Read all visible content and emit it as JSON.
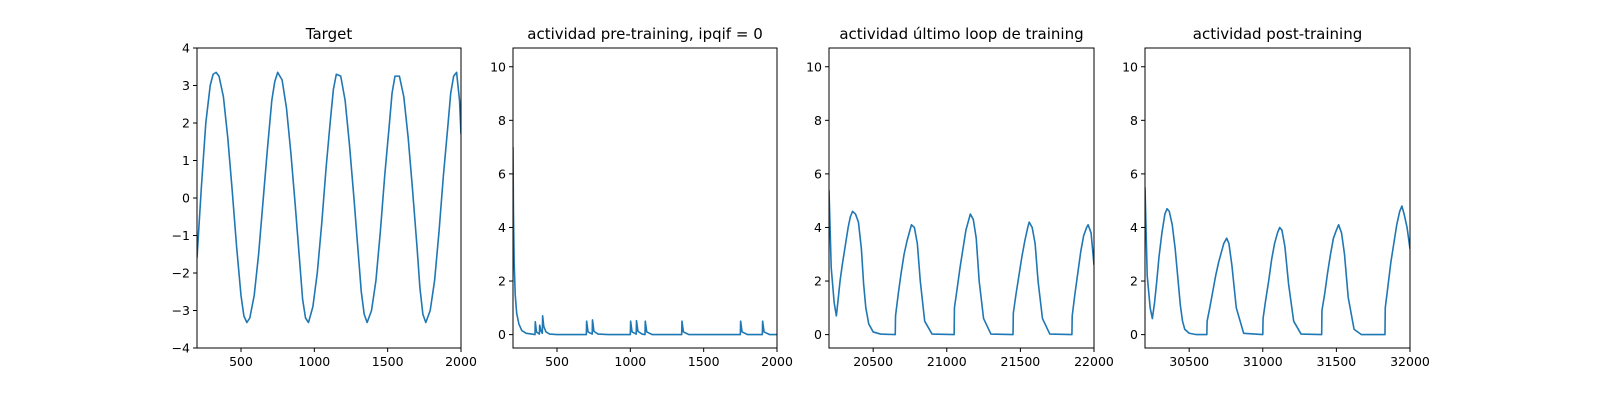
{
  "chart_data": [
    {
      "type": "line",
      "title": "Target",
      "xlim": [
        200,
        2000
      ],
      "ylim": [
        -4,
        4
      ],
      "xticks": [
        500,
        1000,
        1500,
        2000
      ],
      "yticks": [
        -4,
        -3,
        -2,
        -1,
        0,
        1,
        2,
        3,
        4
      ],
      "grid": false,
      "series": [
        {
          "color": "#1f77b4",
          "x": [
            200,
            230,
            260,
            290,
            310,
            330,
            350,
            380,
            410,
            440,
            470,
            500,
            520,
            540,
            560,
            590,
            620,
            650,
            680,
            710,
            730,
            750,
            780,
            810,
            840,
            870,
            900,
            920,
            940,
            960,
            990,
            1020,
            1050,
            1080,
            1110,
            1130,
            1150,
            1180,
            1210,
            1240,
            1270,
            1300,
            1320,
            1340,
            1360,
            1390,
            1420,
            1450,
            1480,
            1510,
            1530,
            1550,
            1580,
            1610,
            1640,
            1670,
            1700,
            1720,
            1740,
            1760,
            1790,
            1820,
            1850,
            1880,
            1910,
            1930,
            1950,
            1970,
            1990,
            2000
          ],
          "y": [
            -1.6,
            0.3,
            2.0,
            3.0,
            3.3,
            3.35,
            3.25,
            2.7,
            1.6,
            0.2,
            -1.3,
            -2.6,
            -3.15,
            -3.32,
            -3.2,
            -2.6,
            -1.5,
            -0.1,
            1.3,
            2.6,
            3.1,
            3.35,
            3.15,
            2.4,
            1.2,
            -0.2,
            -1.7,
            -2.7,
            -3.2,
            -3.32,
            -2.9,
            -2.0,
            -0.7,
            0.8,
            2.1,
            2.9,
            3.3,
            3.25,
            2.6,
            1.4,
            0.0,
            -1.5,
            -2.5,
            -3.1,
            -3.32,
            -3.0,
            -2.2,
            -0.9,
            0.6,
            1.9,
            2.8,
            3.25,
            3.25,
            2.7,
            1.6,
            0.2,
            -1.3,
            -2.4,
            -3.1,
            -3.32,
            -3.0,
            -2.2,
            -0.9,
            0.6,
            1.9,
            2.8,
            3.25,
            3.35,
            2.6,
            1.7
          ]
        }
      ]
    },
    {
      "type": "line",
      "title": "actividad pre-training, ipqif = 0",
      "xlim": [
        200,
        2000
      ],
      "ylim": [
        -0.5,
        10.7
      ],
      "xticks": [
        500,
        1000,
        1500,
        2000
      ],
      "yticks": [
        0,
        2,
        4,
        6,
        8,
        10
      ],
      "grid": false,
      "series": [
        {
          "color": "#1f77b4",
          "x": [
            200,
            203,
            208,
            215,
            225,
            240,
            260,
            290,
            330,
            350,
            352,
            360,
            380,
            382,
            390,
            400,
            402,
            410,
            425,
            450,
            500,
            600,
            700,
            702,
            712,
            740,
            742,
            752,
            780,
            850,
            1000,
            1002,
            1012,
            1040,
            1042,
            1052,
            1080,
            1100,
            1102,
            1112,
            1150,
            1250,
            1350,
            1352,
            1362,
            1400,
            1500,
            1750,
            1752,
            1762,
            1800,
            1900,
            1902,
            1912,
            1950,
            2000
          ],
          "y": [
            7.0,
            4.6,
            2.7,
            1.5,
            0.8,
            0.4,
            0.15,
            0.05,
            0.02,
            0.0,
            0.48,
            0.1,
            0.02,
            0.35,
            0.15,
            0.05,
            0.7,
            0.3,
            0.1,
            0.02,
            0.0,
            0.0,
            0.0,
            0.5,
            0.1,
            0.02,
            0.55,
            0.12,
            0.02,
            0.0,
            0.0,
            0.5,
            0.1,
            0.02,
            0.52,
            0.12,
            0.02,
            0.0,
            0.5,
            0.1,
            0.0,
            0.0,
            0.0,
            0.5,
            0.1,
            0.0,
            0.0,
            0.0,
            0.5,
            0.1,
            0.0,
            0.0,
            0.5,
            0.1,
            0.0,
            0.0
          ]
        }
      ]
    },
    {
      "type": "line",
      "title": "actividad último loop de training",
      "xlim": [
        20200,
        22000
      ],
      "ylim": [
        -0.5,
        10.7
      ],
      "xticks": [
        20500,
        21000,
        21500,
        22000
      ],
      "yticks": [
        0,
        2,
        4,
        6,
        8,
        10
      ],
      "grid": false,
      "series": [
        {
          "color": "#1f77b4",
          "x": [
            20200,
            20215,
            20235,
            20250,
            20260,
            20275,
            20290,
            20310,
            20330,
            20345,
            20360,
            20380,
            20400,
            20420,
            20435,
            20450,
            20470,
            20500,
            20550,
            20650,
            20652,
            20670,
            20690,
            20710,
            20730,
            20750,
            20760,
            20780,
            20800,
            20820,
            20850,
            20900,
            21050,
            21052,
            21070,
            21090,
            21110,
            21130,
            21150,
            21160,
            21180,
            21200,
            21220,
            21250,
            21300,
            21450,
            21452,
            21470,
            21490,
            21510,
            21530,
            21550,
            21560,
            21580,
            21600,
            21620,
            21650,
            21700,
            21850,
            21852,
            21870,
            21890,
            21910,
            21930,
            21950,
            21960,
            21980,
            22000
          ],
          "y": [
            5.4,
            2.5,
            1.2,
            0.7,
            1.2,
            2.0,
            2.6,
            3.3,
            4.0,
            4.4,
            4.6,
            4.5,
            4.2,
            3.2,
            1.9,
            1.0,
            0.4,
            0.1,
            0.02,
            0.0,
            0.7,
            1.5,
            2.3,
            3.0,
            3.5,
            3.9,
            4.1,
            4.0,
            3.4,
            2.0,
            0.5,
            0.02,
            0.0,
            1.0,
            1.7,
            2.5,
            3.2,
            3.9,
            4.3,
            4.5,
            4.3,
            3.6,
            2.0,
            0.6,
            0.02,
            0.0,
            0.8,
            1.5,
            2.2,
            2.9,
            3.5,
            4.0,
            4.2,
            4.0,
            3.4,
            2.0,
            0.6,
            0.02,
            0.0,
            0.7,
            1.5,
            2.3,
            3.1,
            3.7,
            4.0,
            4.1,
            3.8,
            2.6
          ]
        }
      ]
    },
    {
      "type": "line",
      "title": "actividad post-training",
      "xlim": [
        30200,
        32000
      ],
      "ylim": [
        -0.5,
        10.7
      ],
      "xticks": [
        30500,
        31000,
        31500,
        32000
      ],
      "yticks": [
        0,
        2,
        4,
        6,
        8,
        10
      ],
      "grid": false,
      "series": [
        {
          "color": "#1f77b4",
          "x": [
            30200,
            30215,
            30235,
            30250,
            30265,
            30280,
            30295,
            30315,
            30335,
            30350,
            30365,
            30385,
            30405,
            30425,
            30440,
            30455,
            30470,
            30500,
            30550,
            30620,
            30622,
            30640,
            30660,
            30680,
            30700,
            30720,
            30735,
            30755,
            30770,
            30790,
            30820,
            30870,
            31000,
            31002,
            31020,
            31040,
            31060,
            31080,
            31100,
            31115,
            31130,
            31150,
            31175,
            31210,
            31260,
            31400,
            31402,
            31420,
            31440,
            31460,
            31480,
            31500,
            31515,
            31535,
            31555,
            31580,
            31620,
            31670,
            31830,
            31832,
            31850,
            31870,
            31890,
            31910,
            31930,
            31945,
            31960,
            31980,
            32000
          ],
          "y": [
            5.5,
            2.2,
            1.0,
            0.6,
            1.2,
            2.0,
            2.9,
            3.8,
            4.5,
            4.7,
            4.6,
            4.1,
            3.2,
            2.0,
            1.1,
            0.5,
            0.2,
            0.05,
            0.0,
            0.0,
            0.5,
            1.0,
            1.6,
            2.2,
            2.7,
            3.1,
            3.4,
            3.6,
            3.4,
            2.6,
            1.0,
            0.05,
            0.0,
            0.6,
            1.3,
            2.0,
            2.8,
            3.4,
            3.8,
            4.0,
            3.9,
            3.3,
            1.9,
            0.5,
            0.02,
            0.0,
            0.9,
            1.5,
            2.3,
            3.0,
            3.6,
            3.9,
            4.1,
            3.8,
            3.0,
            1.4,
            0.2,
            0.0,
            0.0,
            1.0,
            1.8,
            2.7,
            3.4,
            4.1,
            4.6,
            4.8,
            4.5,
            4.0,
            3.2
          ]
        }
      ]
    }
  ]
}
